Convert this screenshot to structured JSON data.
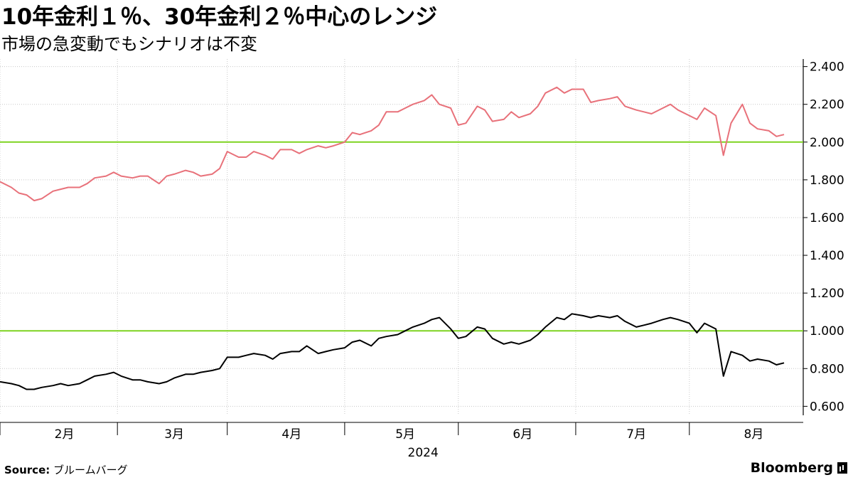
{
  "title": "10年金利１％、30年金利２％中心のレンジ",
  "subtitle": "市場の急変動でもシナリオは不変",
  "footer": {
    "source_label": "Source:",
    "source_text": "ブルームバーグ",
    "brand": "Bloomberg"
  },
  "colors": {
    "series_30y": "#e8717a",
    "series_10y": "#000000",
    "reference_line": "#7ed321",
    "grid": "#c8c8c8",
    "axis": "#000000"
  },
  "chart_data": {
    "type": "line",
    "xlabel": "2024",
    "ylabel": "",
    "ylim": [
      0.56,
      2.44
    ],
    "y_axis_position": "right",
    "grid": true,
    "y_ticks": [
      0.6,
      0.8,
      1.0,
      1.2,
      1.4,
      1.6,
      1.8,
      2.0,
      2.2,
      2.4
    ],
    "y_tick_labels": [
      "0.600",
      "0.800",
      "1.000",
      "1.200",
      "1.400",
      "1.600",
      "1.800",
      "2.000",
      "2.200",
      "2.400"
    ],
    "x_range": [
      "2024-01-15",
      "2024-08-09"
    ],
    "x_ticks": [
      {
        "label": "2月",
        "date": "2024-02-01"
      },
      {
        "label": "3月",
        "date": "2024-03-01"
      },
      {
        "label": "4月",
        "date": "2024-04-01"
      },
      {
        "label": "5月",
        "date": "2024-05-01"
      },
      {
        "label": "6月",
        "date": "2024-06-01"
      },
      {
        "label": "7月",
        "date": "2024-07-01"
      },
      {
        "label": "8月",
        "date": "2024-08-01"
      }
    ],
    "x_tick_dates": [
      "2024-01-15",
      "2024-02-15",
      "2024-03-15",
      "2024-04-15",
      "2024-05-15",
      "2024-06-15",
      "2024-07-15"
    ],
    "reference_lines": [
      {
        "y": 2.0
      },
      {
        "y": 1.0
      }
    ],
    "series": [
      {
        "color": "#e8717a",
        "dates": [
          "2024-01-15",
          "2024-01-18",
          "2024-01-20",
          "2024-01-22",
          "2024-01-24",
          "2024-01-26",
          "2024-01-29",
          "2024-01-31",
          "2024-02-02",
          "2024-02-05",
          "2024-02-07",
          "2024-02-09",
          "2024-02-12",
          "2024-02-14",
          "2024-02-16",
          "2024-02-19",
          "2024-02-21",
          "2024-02-23",
          "2024-02-26",
          "2024-02-28",
          "2024-03-01",
          "2024-03-04",
          "2024-03-06",
          "2024-03-08",
          "2024-03-11",
          "2024-03-13",
          "2024-03-15",
          "2024-03-18",
          "2024-03-20",
          "2024-03-22",
          "2024-03-25",
          "2024-03-27",
          "2024-03-29",
          "2024-04-01",
          "2024-04-03",
          "2024-04-05",
          "2024-04-08",
          "2024-04-10",
          "2024-04-12",
          "2024-04-15",
          "2024-04-17",
          "2024-04-19",
          "2024-04-22",
          "2024-04-24",
          "2024-04-26",
          "2024-04-29",
          "2024-05-01",
          "2024-05-03",
          "2024-05-06",
          "2024-05-08",
          "2024-05-10",
          "2024-05-13",
          "2024-05-15",
          "2024-05-17",
          "2024-05-20",
          "2024-05-22",
          "2024-05-24",
          "2024-05-27",
          "2024-05-29",
          "2024-05-31",
          "2024-06-03",
          "2024-06-05",
          "2024-06-07",
          "2024-06-10",
          "2024-06-12",
          "2024-06-14",
          "2024-06-17",
          "2024-06-19",
          "2024-06-21",
          "2024-06-24",
          "2024-06-26",
          "2024-06-28",
          "2024-07-01",
          "2024-07-03",
          "2024-07-05",
          "2024-07-08",
          "2024-07-10",
          "2024-07-12",
          "2024-07-15",
          "2024-07-17",
          "2024-07-19",
          "2024-07-22",
          "2024-07-24",
          "2024-07-26",
          "2024-07-29",
          "2024-07-31",
          "2024-08-02",
          "2024-08-05",
          "2024-08-07",
          "2024-08-09"
        ],
        "values": [
          1.79,
          1.76,
          1.73,
          1.72,
          1.69,
          1.7,
          1.74,
          1.75,
          1.76,
          1.76,
          1.78,
          1.81,
          1.82,
          1.84,
          1.82,
          1.81,
          1.82,
          1.82,
          1.78,
          1.82,
          1.83,
          1.85,
          1.84,
          1.82,
          1.83,
          1.86,
          1.95,
          1.92,
          1.92,
          1.95,
          1.93,
          1.91,
          1.96,
          1.96,
          1.94,
          1.96,
          1.98,
          1.97,
          1.98,
          2.0,
          2.05,
          2.04,
          2.06,
          2.09,
          2.16,
          2.16,
          2.18,
          2.2,
          2.22,
          2.25,
          2.2,
          2.18,
          2.09,
          2.1,
          2.19,
          2.17,
          2.11,
          2.12,
          2.16,
          2.13,
          2.15,
          2.19,
          2.26,
          2.29,
          2.26,
          2.28,
          2.28,
          2.21,
          2.22,
          2.23,
          2.24,
          2.19,
          2.17,
          2.16,
          2.15,
          2.18,
          2.2,
          2.17,
          2.14,
          2.12,
          2.18,
          2.14,
          1.93,
          2.1,
          2.2,
          2.1,
          2.07,
          2.06,
          2.03,
          2.04
        ]
      },
      {
        "color": "#000000",
        "dates": [
          "2024-01-15",
          "2024-01-18",
          "2024-01-20",
          "2024-01-22",
          "2024-01-24",
          "2024-01-26",
          "2024-01-29",
          "2024-01-31",
          "2024-02-02",
          "2024-02-05",
          "2024-02-07",
          "2024-02-09",
          "2024-02-12",
          "2024-02-14",
          "2024-02-16",
          "2024-02-19",
          "2024-02-21",
          "2024-02-23",
          "2024-02-26",
          "2024-02-28",
          "2024-03-01",
          "2024-03-04",
          "2024-03-06",
          "2024-03-08",
          "2024-03-11",
          "2024-03-13",
          "2024-03-15",
          "2024-03-18",
          "2024-03-20",
          "2024-03-22",
          "2024-03-25",
          "2024-03-27",
          "2024-03-29",
          "2024-04-01",
          "2024-04-03",
          "2024-04-05",
          "2024-04-08",
          "2024-04-10",
          "2024-04-12",
          "2024-04-15",
          "2024-04-17",
          "2024-04-19",
          "2024-04-22",
          "2024-04-24",
          "2024-04-26",
          "2024-04-29",
          "2024-05-01",
          "2024-05-03",
          "2024-05-06",
          "2024-05-08",
          "2024-05-10",
          "2024-05-13",
          "2024-05-15",
          "2024-05-17",
          "2024-05-20",
          "2024-05-22",
          "2024-05-24",
          "2024-05-27",
          "2024-05-29",
          "2024-05-31",
          "2024-06-03",
          "2024-06-05",
          "2024-06-07",
          "2024-06-10",
          "2024-06-12",
          "2024-06-14",
          "2024-06-17",
          "2024-06-19",
          "2024-06-21",
          "2024-06-24",
          "2024-06-26",
          "2024-06-28",
          "2024-07-01",
          "2024-07-03",
          "2024-07-05",
          "2024-07-08",
          "2024-07-10",
          "2024-07-12",
          "2024-07-15",
          "2024-07-17",
          "2024-07-19",
          "2024-07-22",
          "2024-07-24",
          "2024-07-26",
          "2024-07-29",
          "2024-07-31",
          "2024-08-02",
          "2024-08-05",
          "2024-08-07",
          "2024-08-09"
        ],
        "values": [
          0.73,
          0.72,
          0.71,
          0.69,
          0.69,
          0.7,
          0.71,
          0.72,
          0.71,
          0.72,
          0.74,
          0.76,
          0.77,
          0.78,
          0.76,
          0.74,
          0.74,
          0.73,
          0.72,
          0.73,
          0.75,
          0.77,
          0.77,
          0.78,
          0.79,
          0.8,
          0.86,
          0.86,
          0.87,
          0.88,
          0.87,
          0.85,
          0.88,
          0.89,
          0.89,
          0.92,
          0.88,
          0.89,
          0.9,
          0.91,
          0.94,
          0.95,
          0.92,
          0.96,
          0.97,
          0.98,
          1.0,
          1.02,
          1.04,
          1.06,
          1.07,
          1.01,
          0.96,
          0.97,
          1.02,
          1.01,
          0.96,
          0.93,
          0.94,
          0.93,
          0.95,
          0.98,
          1.02,
          1.07,
          1.06,
          1.09,
          1.08,
          1.07,
          1.08,
          1.07,
          1.08,
          1.05,
          1.02,
          1.03,
          1.04,
          1.06,
          1.07,
          1.06,
          1.04,
          0.99,
          1.04,
          1.01,
          0.76,
          0.89,
          0.87,
          0.84,
          0.85,
          0.84,
          0.82,
          0.83
        ]
      }
    ]
  }
}
